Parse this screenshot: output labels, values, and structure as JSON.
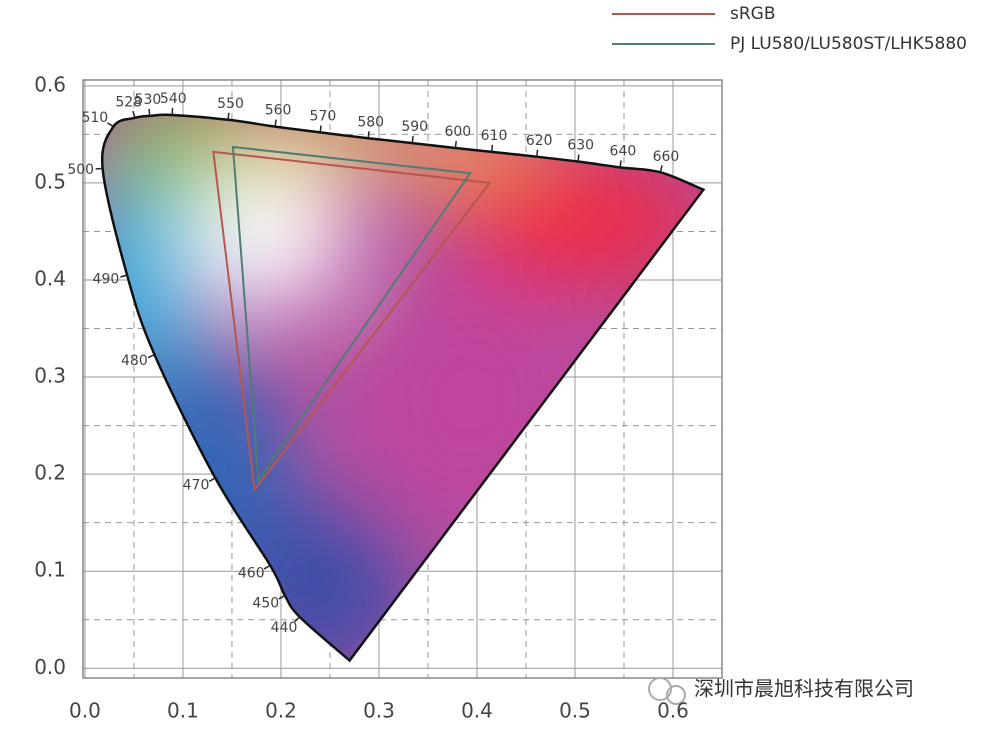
{
  "chart_data": {
    "type": "chromaticity",
    "xlim": [
      -0.002,
      0.65
    ],
    "ylim": [
      -0.01,
      0.606
    ],
    "xticks": [
      {
        "value": 0,
        "label": "0.0"
      },
      {
        "value": 0.1,
        "label": "0.1"
      },
      {
        "value": 0.2,
        "label": "0.2"
      },
      {
        "value": 0.3,
        "label": "0.3"
      },
      {
        "value": 0.4,
        "label": "0.4"
      },
      {
        "value": 0.5,
        "label": "0.5"
      },
      {
        "value": 0.6,
        "label": "0.6"
      }
    ],
    "yticks": [
      {
        "value": 0,
        "label": "0.0"
      },
      {
        "value": 0.1,
        "label": "0.1"
      },
      {
        "value": 0.2,
        "label": "0.2"
      },
      {
        "value": 0.3,
        "label": "0.3"
      },
      {
        "value": 0.4,
        "label": "0.4"
      },
      {
        "value": 0.5,
        "label": "0.5"
      },
      {
        "value": 0.6,
        "label": "0.6"
      }
    ],
    "xminor": [
      0.05,
      0.15,
      0.25,
      0.35,
      0.45,
      0.55
    ],
    "yminor": [
      0.05,
      0.15,
      0.25,
      0.35,
      0.45,
      0.55
    ],
    "grid": true,
    "spectral_locus": {
      "labels": [
        null,
        "440",
        "450",
        "460",
        "470",
        "480",
        "490",
        "500",
        "510",
        "528",
        "530",
        "540",
        "550",
        "560",
        "570",
        "580",
        "590",
        "600",
        "610",
        "620",
        "630",
        "640",
        "660",
        null
      ],
      "x": [
        0.27,
        0.219,
        0.204,
        0.189,
        0.133,
        0.071,
        0.043,
        0.018,
        0.029,
        0.051,
        0.066,
        0.089,
        0.146,
        0.194,
        0.24,
        0.289,
        0.334,
        0.378,
        0.415,
        0.461,
        0.503,
        0.546,
        0.587,
        0.631
      ],
      "y": [
        0.008,
        0.053,
        0.075,
        0.106,
        0.196,
        0.323,
        0.405,
        0.515,
        0.558,
        0.567,
        0.569,
        0.57,
        0.565,
        0.558,
        0.552,
        0.546,
        0.541,
        0.536,
        0.532,
        0.527,
        0.522,
        0.516,
        0.511,
        0.493
      ]
    },
    "series": [
      {
        "name": "sRGB",
        "color": "#b5574e",
        "x": [
          0.131,
          0.413,
          0.173
        ],
        "y": [
          0.532,
          0.5,
          0.184
        ]
      },
      {
        "name": "PJ LU580/LU580ST/LHK5880",
        "color": "#4f7d74",
        "x": [
          0.151,
          0.393,
          0.177
        ],
        "y": [
          0.537,
          0.51,
          0.194
        ]
      }
    ],
    "watermark": "深圳市晨旭科技有限公司"
  }
}
